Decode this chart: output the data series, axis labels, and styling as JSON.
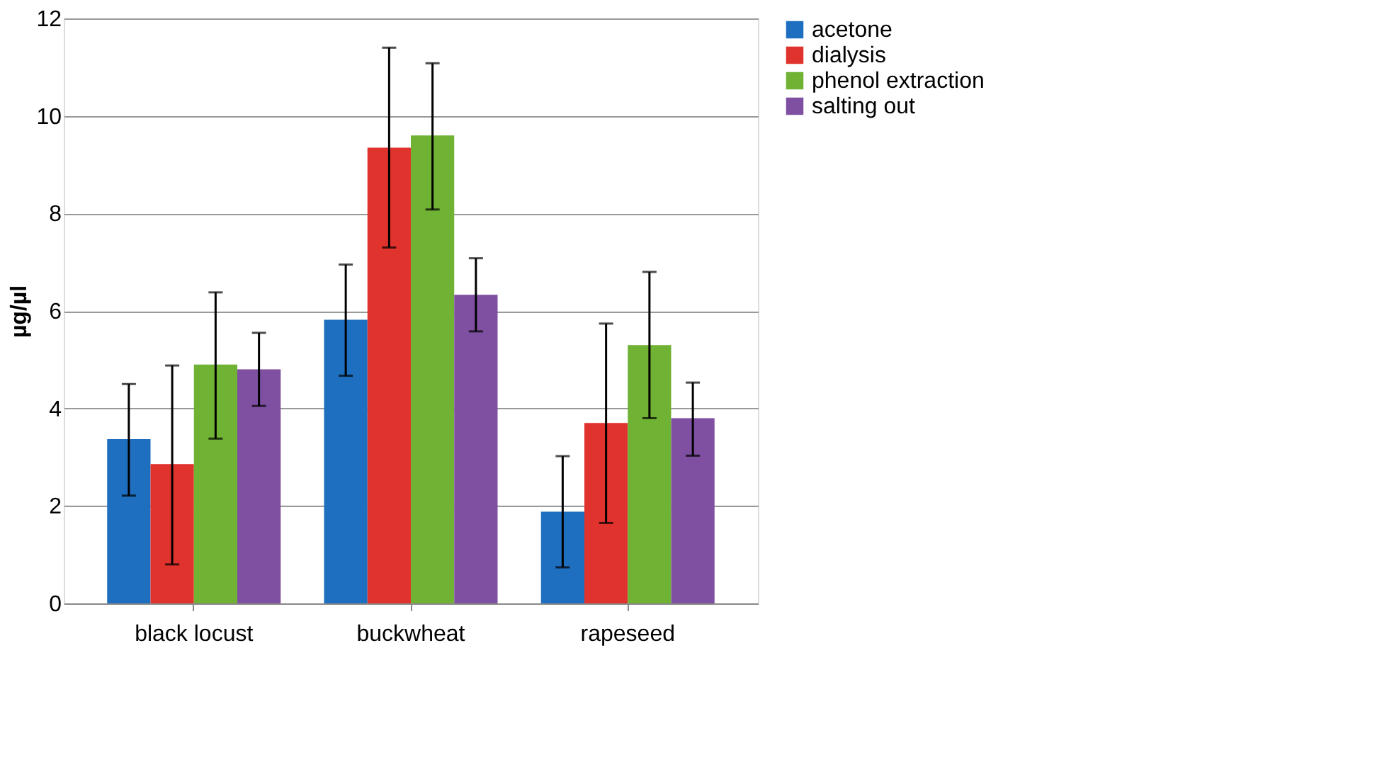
{
  "chart_data": {
    "type": "bar",
    "ylabel": "µg/µl",
    "categories": [
      "black locust",
      "buckwheat",
      "rapeseed"
    ],
    "series": [
      {
        "name": "acetone",
        "color": "#1f6fc0",
        "values": [
          3.37,
          5.82,
          1.88
        ],
        "errors": [
          [
            2.21,
            4.5
          ],
          [
            4.67,
            6.95
          ],
          [
            0.74,
            3.02
          ]
        ]
      },
      {
        "name": "dialysis",
        "color": "#e0332e",
        "values": [
          2.86,
          9.35,
          3.7
        ],
        "errors": [
          [
            0.8,
            4.88
          ],
          [
            7.3,
            11.4
          ],
          [
            1.65,
            5.74
          ]
        ]
      },
      {
        "name": "phenol extraction",
        "color": "#6fb234",
        "values": [
          4.9,
          9.6,
          5.3
        ],
        "errors": [
          [
            3.38,
            6.38
          ],
          [
            8.08,
            11.08
          ],
          [
            3.8,
            6.8
          ]
        ]
      },
      {
        "name": "salting out",
        "color": "#7f4fa1",
        "values": [
          4.8,
          6.33,
          3.8
        ],
        "errors": [
          [
            4.05,
            5.55
          ],
          [
            5.58,
            7.08
          ],
          [
            3.03,
            4.53
          ]
        ]
      }
    ],
    "ylim": [
      0,
      12
    ],
    "yticks": [
      0,
      2,
      4,
      6,
      8,
      10,
      12
    ],
    "grid": "y",
    "legend": "right"
  }
}
